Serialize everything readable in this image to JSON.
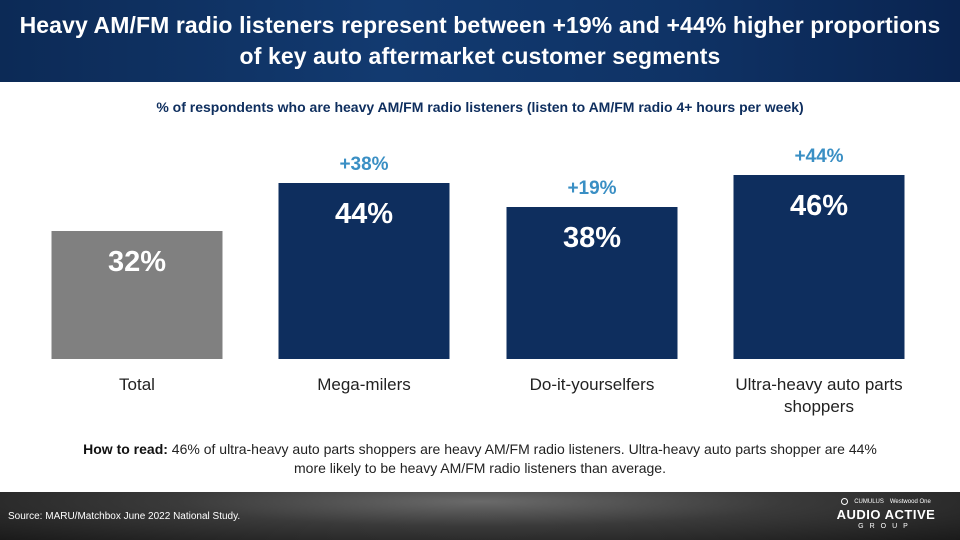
{
  "header": {
    "title": "Heavy AM/FM radio listeners represent between +19% and +44% higher proportions of key auto aftermarket customer segments"
  },
  "subtitle": "% of respondents who are heavy AM/FM radio listeners (listen to AM/FM radio 4+ hours per week)",
  "chart_data": {
    "type": "bar",
    "categories": [
      "Total",
      "Mega-milers",
      "Do-it-yourselfers",
      "Ultra-heavy auto parts shoppers"
    ],
    "category_lines": [
      [
        "Total"
      ],
      [
        "Mega-milers"
      ],
      [
        "Do-it-yourselfers"
      ],
      [
        "Ultra-heavy auto parts",
        "shoppers"
      ]
    ],
    "values": [
      32,
      44,
      38,
      46
    ],
    "value_labels": [
      "32%",
      "44%",
      "38%",
      "46%"
    ],
    "index_labels": [
      "",
      "+38%",
      "+19%",
      "+44%"
    ],
    "colors": [
      "#808080",
      "#0e2e5e",
      "#0e2e5e",
      "#0e2e5e"
    ],
    "index_color": "#3a8fc4",
    "ylim": [
      0,
      46
    ],
    "grid": false,
    "legend": "none"
  },
  "howto": {
    "label": "How to read:",
    "text": " 46% of ultra-heavy auto parts shoppers are heavy AM/FM radio listeners. Ultra-heavy auto parts shopper are 44% more likely to be heavy AM/FM radio listeners than average."
  },
  "footer": {
    "source": "Source: MARU/Matchbox June 2022 National Study.",
    "logo_top_left": "CUMULUS",
    "logo_top_right": "Westwood One",
    "logo_main": "AUDIO ACTIVE",
    "logo_sub": "GROUP"
  }
}
